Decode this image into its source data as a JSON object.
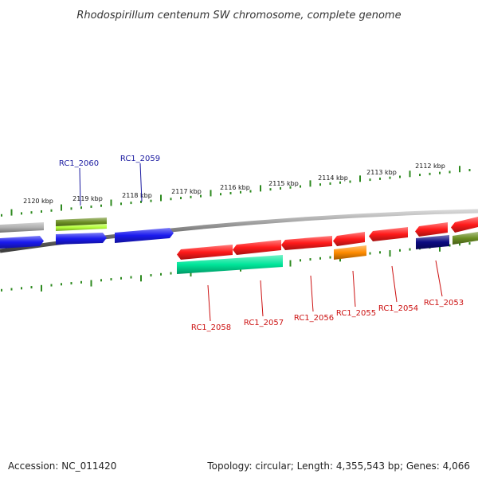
{
  "title": "Rhodospirillum centenum SW chromosome, complete genome",
  "footer": {
    "accession": "Accession: NC_011420",
    "topology": "Topology: circular; Length: 4,355,543 bp; Genes: 4,066"
  },
  "colors": {
    "tick": "#2d8a1f",
    "backbone": "#7a7a7a",
    "label_forward": "#1a1aa0",
    "label_reverse": "#cc1111"
  },
  "scale": {
    "unit": "kbp",
    "ticks": [
      {
        "label": "2120 kbp"
      },
      {
        "label": "2119 kbp"
      },
      {
        "label": "2118 kbp"
      },
      {
        "label": "2117 kbp"
      },
      {
        "label": "2116 kbp"
      },
      {
        "label": "2115 kbp"
      },
      {
        "label": "2114 kbp"
      },
      {
        "label": "2113 kbp"
      },
      {
        "label": "2112 kbp"
      }
    ]
  },
  "features": {
    "forward": [
      {
        "color": "#b0b0b0"
      },
      {
        "color": "#1a1aee"
      },
      {
        "color": "#6b8e23"
      },
      {
        "color": "#b5ff3a"
      },
      {
        "color": "#1a1aee"
      },
      {
        "color": "#1a1aee"
      }
    ],
    "reverse": [
      {
        "color": "#ff1a1a"
      },
      {
        "color": "#ff1a1a"
      },
      {
        "color": "#ff1a1a"
      },
      {
        "color": "#ff1a1a"
      },
      {
        "color": "#ff1a1a"
      },
      {
        "color": "#ff1a1a"
      },
      {
        "color": "#ff1a1a"
      },
      {
        "color": "#00e69a"
      },
      {
        "color": "#ff8c00"
      },
      {
        "color": "#0a0a80"
      },
      {
        "color": "#6b8e23"
      }
    ]
  },
  "gene_labels": [
    {
      "text": "RC1_2060",
      "strand": "forward"
    },
    {
      "text": "RC1_2059",
      "strand": "forward"
    },
    {
      "text": "RC1_2058",
      "strand": "reverse"
    },
    {
      "text": "RC1_2057",
      "strand": "reverse"
    },
    {
      "text": "RC1_2056",
      "strand": "reverse"
    },
    {
      "text": "RC1_2055",
      "strand": "reverse"
    },
    {
      "text": "RC1_2054",
      "strand": "reverse"
    },
    {
      "text": "RC1_2053",
      "strand": "reverse"
    }
  ]
}
